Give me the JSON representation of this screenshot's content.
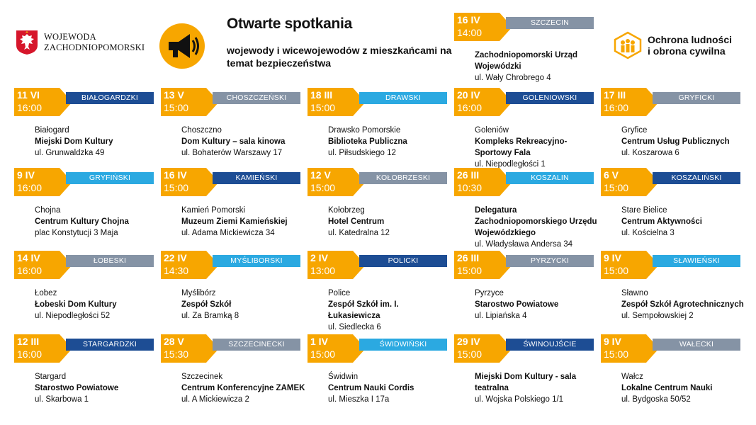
{
  "header": {
    "gov_line1": "WOJEWODA",
    "gov_line2": "ZACHODNIOPOMORSKI",
    "title": "Otwarte spotkania",
    "subtitle": "wojewody i wicewojewodów z mieszkańcami na temat bezpieczeństwa",
    "civil_line1": "Ochrona ludności",
    "civil_line2": "i obrona cywilna"
  },
  "colors": {
    "orange": "#f7a600",
    "dark_blue": "#1d4d94",
    "light_blue": "#2ba9e1",
    "grey": "#8593a5"
  },
  "events": [
    {
      "date": "11 VI",
      "time": "16:00",
      "county": "BIAŁOGARDZKI",
      "bar": "dblue",
      "town": "Białogard",
      "venue": "Miejski Dom Kultury",
      "street": "ul. Grunwaldzka 49"
    },
    {
      "date": "13 V",
      "time": "15:00",
      "county": "CHOSZCZEŃSKI",
      "bar": "grey",
      "town": "Choszczno",
      "venue": "Dom Kultury – sala kinowa",
      "street": "ul. Bohaterów Warszawy 17"
    },
    {
      "date": "18 III",
      "time": "15:00",
      "county": "DRAWSKI",
      "bar": "lblue",
      "town": "Drawsko Pomorskie",
      "venue": "Biblioteka Publiczna",
      "street": "ul. Piłsudskiego 12"
    },
    {
      "date": "20 IV",
      "time": "16:00",
      "county": "GOLENIOWSKI",
      "bar": "dblue",
      "town": "Goleniów",
      "venue": "Kompleks Rekreacyjno-Sportowy Fala",
      "street": "ul. Niepodległości 1"
    },
    {
      "date": "17 III",
      "time": "16:00",
      "county": "GRYFICKI",
      "bar": "grey",
      "town": "Gryfice",
      "venue": "Centrum Usług Publicznych",
      "street": "ul. Koszarowa 6"
    },
    {
      "date": "9 IV",
      "time": "16:00",
      "county": "GRYFIŃSKI",
      "bar": "lblue",
      "town": "Chojna",
      "venue": "Centrum Kultury Chojna",
      "street": "plac Konstytucji 3 Maja"
    },
    {
      "date": "16 IV",
      "time": "15:00",
      "county": "KAMIEŃSKI",
      "bar": "dblue",
      "town": "Kamień Pomorski",
      "venue": "Muzeum Ziemi Kamieńskiej",
      "street": "ul. Adama Mickiewicza 34"
    },
    {
      "date": "12 V",
      "time": "15:00",
      "county": "KOŁOBRZESKI",
      "bar": "grey",
      "town": "Kołobrzeg",
      "venue": "Hotel Centrum",
      "street": "ul. Katedralna 12"
    },
    {
      "date": "26 III",
      "time": "10:30",
      "county": "KOSZALIN",
      "bar": "lblue",
      "town": "",
      "venue": "Delegatura Zachodniopomorskiego Urzędu Wojewódzkiego",
      "street": "ul. Władysława Andersa 34"
    },
    {
      "date": "6 V",
      "time": "15:00",
      "county": "KOSZALIŃSKI",
      "bar": "dblue",
      "town": "Stare Bielice",
      "venue": "Centrum Aktywności",
      "street": "ul. Kościelna 3"
    },
    {
      "date": "14 IV",
      "time": "16:00",
      "county": "ŁOBESKI",
      "bar": "grey",
      "town": "Łobez",
      "venue": "Łobeski Dom Kultury",
      "street": "ul. Niepodległości 52"
    },
    {
      "date": "22 IV",
      "time": "14:30",
      "county": "MYŚLIBORSKI",
      "bar": "lblue",
      "town": "Myślibórz",
      "venue": "Zespół Szkół",
      "street": "ul. Za Bramką 8"
    },
    {
      "date": "2 IV",
      "time": "13:00",
      "county": "POLICKI",
      "bar": "dblue",
      "town": "Police",
      "venue": "Zespół Szkół im. I. Łukasiewicza",
      "street": "ul. Siedlecka 6"
    },
    {
      "date": "26 III",
      "time": "15:00",
      "county": "PYRZYCKI",
      "bar": "grey",
      "town": "Pyrzyce",
      "venue": "Starostwo Powiatowe",
      "street": "ul. Lipiańska 4"
    },
    {
      "date": "9 IV",
      "time": "15:00",
      "county": "SŁAWIEŃSKI",
      "bar": "lblue",
      "town": "Sławno",
      "venue": "Zespół Szkół Agrotechnicznych",
      "street": "ul. Sempołowskiej 2"
    },
    {
      "date": "12 III",
      "time": "16:00",
      "county": "STARGARDZKI",
      "bar": "dblue",
      "town": "Stargard",
      "venue": "Starostwo Powiatowe",
      "street": "ul. Skarbowa 1"
    },
    {
      "date": "28 V",
      "time": "15:30",
      "county": "SZCZECINECKI",
      "bar": "grey",
      "town": "Szczecinek",
      "venue": "Centrum Konferencyjne ZAMEK",
      "street": "ul. A Mickiewicza 2"
    },
    {
      "date": "1 IV",
      "time": "15:00",
      "county": "ŚWIDWIŃSKI",
      "bar": "lblue",
      "town": "Świdwin",
      "venue": "Centrum Nauki Cordis",
      "street": "ul. Mieszka I 17a"
    },
    {
      "date": "29 IV",
      "time": "15:00",
      "county": "ŚWINOUJŚCIE",
      "bar": "dblue",
      "town": "",
      "venue": "Miejski Dom Kultury - sala teatralna",
      "street": "ul. Wojska Polskiego 1/1"
    },
    {
      "date": "9 IV",
      "time": "15:00",
      "county": "WAŁECKI",
      "bar": "grey",
      "town": "Wałcz",
      "venue": "Lokalne Centrum Nauki",
      "street": "ul. Bydgoska 50/52"
    },
    {
      "date": "16 IV",
      "time": "14:00",
      "county": "SZCZECIN",
      "bar": "grey",
      "town": "",
      "venue": "Zachodniopomorski Urząd Wojewódzki",
      "street": "ul. Wały Chrobrego 4"
    }
  ]
}
